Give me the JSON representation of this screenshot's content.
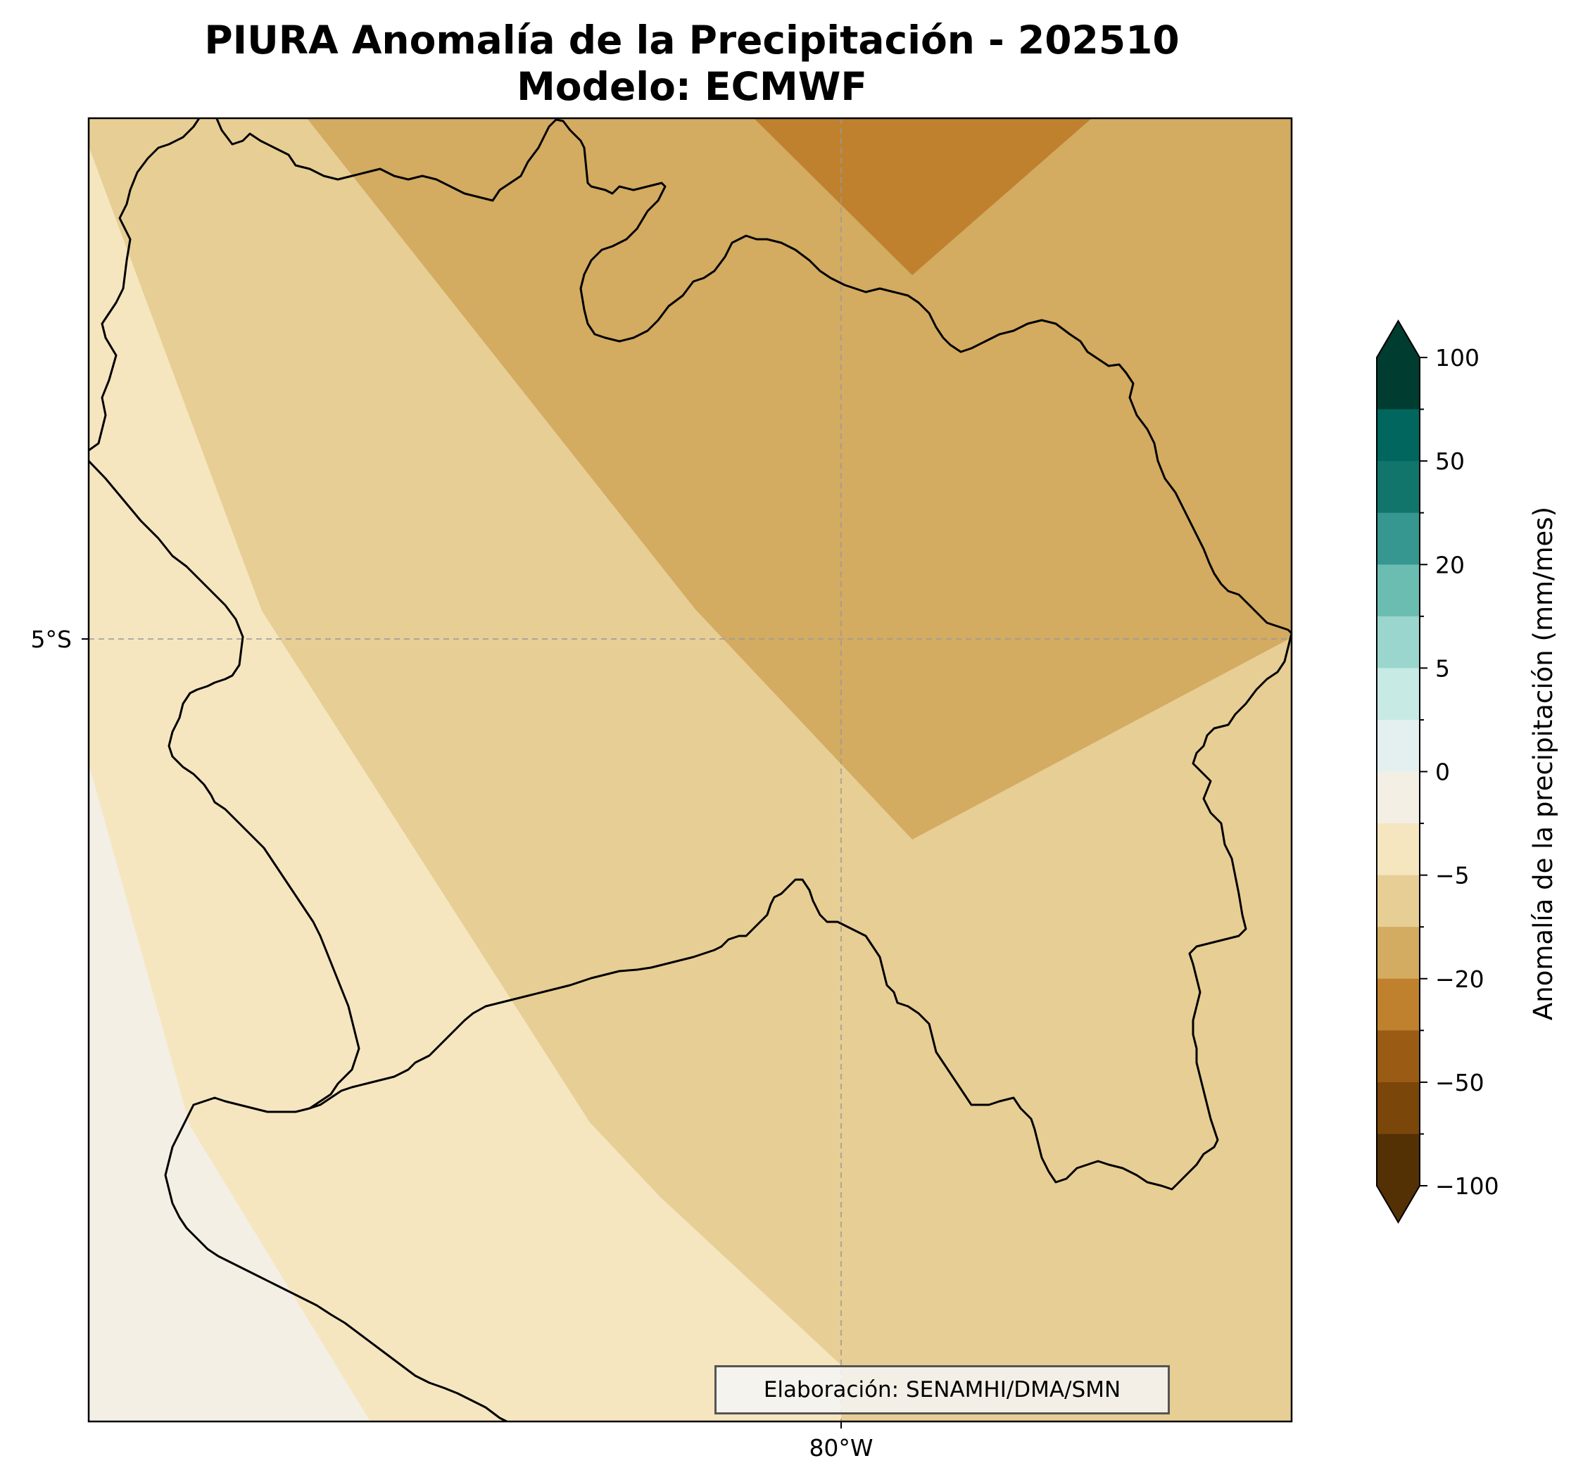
{
  "title_line1": "PIURA Anomalía de la Precipitación - 202510",
  "title_line2": "Modelo: ECMWF",
  "map": {
    "lat_label": "5°S",
    "lon_label": "80°W",
    "credit": "Elaboración: SENAMHI/DMA/SMN"
  },
  "legend": {
    "label": "Anomalía de la precipitación (mm/mes)",
    "ticks": [
      "100",
      "50",
      "20",
      "5",
      "0",
      "−5",
      "−20",
      "−50",
      "−100"
    ],
    "colors": [
      "#003c30",
      "#01665e",
      "#35978f",
      "#80cdc1",
      "#c7eae5",
      "#f5f5f5",
      "#f6e8c3",
      "#dfc27d",
      "#bf812d",
      "#8c510a",
      "#543005"
    ]
  },
  "chart_data": {
    "type": "heatmap",
    "region": "PIURA",
    "period": "202510",
    "model": "ECMWF",
    "variable": "Anomalía de la precipitación (mm/mes)",
    "colorbar_ticks": [
      100,
      50,
      20,
      5,
      0,
      -5,
      -20,
      -50,
      -100
    ],
    "extend": "both",
    "anomaly_classes_shown": [
      "0 a -5 (lejos de la costa, suroeste)",
      "-5 (costa)",
      "-5 a -20 (centro)",
      "-20 (noreste)",
      "-20 a -50 (extremo norte)"
    ]
  }
}
